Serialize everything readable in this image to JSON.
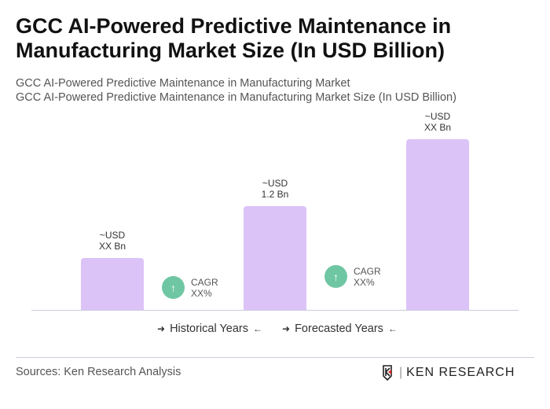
{
  "title": "GCC AI-Powered Predictive Maintenance in Manufacturing Market Size (In USD Billion)",
  "subtitle1": "GCC AI-Powered Predictive Maintenance in Manufacturing Market",
  "subtitle2": "GCC AI-Powered Predictive Maintenance in Manufacturing Market Size (In USD Billion)",
  "chart_data": {
    "type": "bar",
    "categories": [
      "",
      "",
      ""
    ],
    "values": [
      0.6,
      1.2,
      1.97
    ],
    "data_labels": [
      [
        "~USD",
        "XX Bn"
      ],
      [
        "~USD",
        "1.2 Bn"
      ],
      [
        "~USD",
        "XX Bn"
      ]
    ],
    "cagr": [
      {
        "label": "CAGR",
        "value": "XX%"
      },
      {
        "label": "CAGR",
        "value": "XX%"
      }
    ],
    "bar_color": "#dcc3f7",
    "cagr_color": "#6fc6a2",
    "grid": false
  },
  "legend": {
    "historical": "Historical Years",
    "forecasted": "Forecasted Years"
  },
  "source": "Sources: Ken Research Analysis",
  "logo": "KEN RESEARCH"
}
